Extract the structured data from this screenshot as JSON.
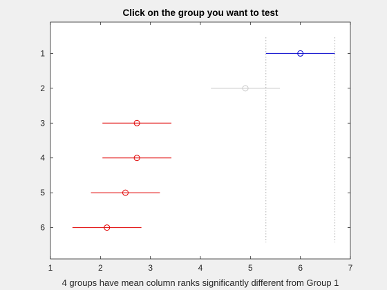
{
  "chart_data": {
    "type": "multcompare-interval",
    "title": "Click on the group you want to test",
    "xlabel": "4 groups have mean column ranks significantly different from Group 1",
    "ylabel": "",
    "xlim": [
      1,
      7
    ],
    "ylim": [
      0.1,
      6.9
    ],
    "x_ticks": [
      1,
      2,
      3,
      4,
      5,
      6,
      7
    ],
    "y_ticks": [
      1,
      2,
      3,
      4,
      5,
      6
    ],
    "groups": [
      {
        "label": "1",
        "mean": 6.0,
        "lower": 5.31,
        "upper": 6.69,
        "status": "selected"
      },
      {
        "label": "2",
        "mean": 4.9,
        "lower": 4.21,
        "upper": 5.59,
        "status": "not-significant"
      },
      {
        "label": "3",
        "mean": 2.73,
        "lower": 2.04,
        "upper": 3.42,
        "status": "significant"
      },
      {
        "label": "4",
        "mean": 2.73,
        "lower": 2.04,
        "upper": 3.42,
        "status": "significant"
      },
      {
        "label": "5",
        "mean": 2.5,
        "lower": 1.81,
        "upper": 3.19,
        "status": "significant"
      },
      {
        "label": "6",
        "mean": 2.13,
        "lower": 1.44,
        "upper": 2.82,
        "status": "significant"
      }
    ],
    "reference_lines": [
      5.31,
      6.69
    ],
    "colors": {
      "selected": "#0000cc",
      "not-significant": "#c8c8c8",
      "significant": "#e00000",
      "reference": "#b0b0b0",
      "axes": "#262626",
      "plot_background": "#ffffff",
      "figure_background": "#f0f0f0"
    },
    "grid": false,
    "legend": "none"
  }
}
